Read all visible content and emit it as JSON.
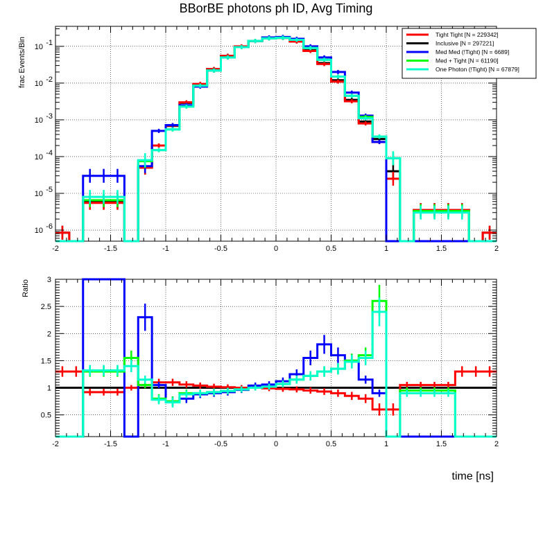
{
  "chart_data": [
    {
      "type": "histogram-step",
      "title": "BBorBE photons ph ID, Avg Timing",
      "ylabel": "frac Events/Bin",
      "xlabel": "",
      "yscale": "log",
      "xlim": [
        -2,
        2
      ],
      "ylim": [
        5e-07,
        0.35
      ],
      "grid": true,
      "legend_position": "top-right",
      "x_ticks": [
        "-2",
        "-1.5",
        "-1",
        "-0.5",
        "0",
        "0.5",
        "1",
        "1.5",
        "2"
      ],
      "y_ticks": [
        {
          "base": "10",
          "exp": "-1",
          "value": 0.1
        },
        {
          "base": "10",
          "exp": "-2",
          "value": 0.01
        },
        {
          "base": "10",
          "exp": "-3",
          "value": 0.001
        },
        {
          "base": "10",
          "exp": "-4",
          "value": 0.0001
        },
        {
          "base": "10",
          "exp": "-5",
          "value": 1e-05
        },
        {
          "base": "10",
          "exp": "-6",
          "value": 1e-06
        }
      ],
      "series": [
        {
          "name": "Inclusive [N = 297221]",
          "color": "#000000",
          "values": [
            8.5e-07,
            0,
            6e-06,
            6e-06,
            6e-06,
            0,
            5e-05,
            0.0002,
            0.00068,
            0.0029,
            0.009,
            0.024,
            0.055,
            0.098,
            0.14,
            0.165,
            0.17,
            0.14,
            0.078,
            0.035,
            0.012,
            0.0035,
            0.0009,
            0.0003,
            4e-05,
            0,
            3.5e-06,
            3.5e-06,
            3.5e-06,
            3.5e-06,
            0,
            8.5e-07
          ]
        },
        {
          "name": "Tight Tight [N = 229342]",
          "color": "#ff0000",
          "values": [
            8.5e-07,
            0,
            5.5e-06,
            5.5e-06,
            5.5e-06,
            0,
            5e-05,
            0.0002,
            0.0007,
            0.003,
            0.0095,
            0.024,
            0.055,
            0.1,
            0.14,
            0.165,
            0.17,
            0.135,
            0.075,
            0.033,
            0.011,
            0.0032,
            0.0008,
            0.00025,
            2.5e-05,
            0,
            3.5e-06,
            3.5e-06,
            3.5e-06,
            3.5e-06,
            0,
            8.5e-07
          ]
        },
        {
          "name": "Med Med (!Tight) [N = 6689]",
          "color": "#0000ff",
          "values": [
            0,
            0,
            3e-05,
            3e-05,
            3e-05,
            0,
            5.5e-05,
            0.0005,
            0.00072,
            0.0025,
            0.008,
            0.022,
            0.05,
            0.095,
            0.14,
            0.175,
            0.18,
            0.16,
            0.1,
            0.05,
            0.02,
            0.0055,
            0.0013,
            0.00025,
            0,
            0,
            0,
            0,
            0,
            0,
            0,
            0
          ]
        },
        {
          "name": "Med + Tight [N = 61190]",
          "color": "#00ff00",
          "values": [
            0,
            0,
            6.5e-06,
            6.5e-06,
            6.5e-06,
            0,
            7.5e-05,
            0.00015,
            0.00055,
            0.0023,
            0.0085,
            0.022,
            0.05,
            0.095,
            0.14,
            0.165,
            0.17,
            0.15,
            0.09,
            0.043,
            0.015,
            0.0045,
            0.0012,
            0.00035,
            9e-05,
            0,
            3.3e-06,
            3.3e-06,
            3.3e-06,
            3.3e-06,
            0,
            0
          ]
        },
        {
          "name": "One Photon (!Tight) [N = 67879]",
          "color": "#00ffcc",
          "values": [
            0,
            0,
            8e-06,
            8e-06,
            8e-06,
            0,
            8e-05,
            0.00015,
            0.00055,
            0.0023,
            0.0085,
            0.022,
            0.05,
            0.095,
            0.14,
            0.165,
            0.17,
            0.15,
            0.09,
            0.043,
            0.015,
            0.0045,
            0.0011,
            0.00035,
            9e-05,
            0,
            3e-06,
            3e-06,
            3e-06,
            3e-06,
            0,
            0
          ]
        }
      ]
    },
    {
      "type": "histogram-step",
      "title": "",
      "ylabel": "Ratio",
      "xlabel": "time [ns]",
      "yscale": "linear",
      "xlim": [
        -2,
        2
      ],
      "ylim": [
        0.1,
        3
      ],
      "grid": true,
      "x_ticks": [
        "-2",
        "-1.5",
        "-1",
        "-0.5",
        "0",
        "0.5",
        "1",
        "1.5",
        "2"
      ],
      "y_ticks": [
        "0.5",
        "1",
        "1.5",
        "2",
        "2.5",
        "3"
      ],
      "series": [
        {
          "name": "Inclusive",
          "color": "#000000",
          "values": [
            1,
            1,
            1,
            1,
            1,
            1,
            1,
            1,
            1,
            1,
            1,
            1,
            1,
            1,
            1,
            1,
            1,
            1,
            1,
            1,
            1,
            1,
            1,
            1,
            1,
            1,
            1,
            1,
            1,
            1,
            1,
            1
          ]
        },
        {
          "name": "Tight Tight",
          "color": "#ff0000",
          "values": [
            1.3,
            1.3,
            0.92,
            0.92,
            0.92,
            1.0,
            1.05,
            1.1,
            1.1,
            1.06,
            1.04,
            1.02,
            1.01,
            1.0,
            1.0,
            0.99,
            0.98,
            0.97,
            0.95,
            0.93,
            0.9,
            0.85,
            0.8,
            0.6,
            0.6,
            1.05,
            1.05,
            1.05,
            1.05,
            1.3,
            1.3,
            1.3
          ]
        },
        {
          "name": "Med Med (!Tight)",
          "color": "#0000ff",
          "values": [
            0.1,
            0.1,
            3.0,
            3.0,
            3.0,
            0.1,
            2.3,
            1.05,
            0.75,
            0.8,
            0.88,
            0.9,
            0.92,
            0.96,
            1.04,
            1.06,
            1.12,
            1.25,
            1.55,
            1.8,
            1.6,
            1.5,
            1.15,
            0.9,
            0.1,
            0.1,
            0.1,
            0.1,
            0.1,
            0.1,
            0.1,
            0.1
          ]
        },
        {
          "name": "Med + Tight",
          "color": "#00ff00",
          "values": [
            0.1,
            0.1,
            1.3,
            1.3,
            1.3,
            1.55,
            1.05,
            0.8,
            0.75,
            0.9,
            0.9,
            0.92,
            0.94,
            0.97,
            1.0,
            1.02,
            1.07,
            1.15,
            1.22,
            1.3,
            1.35,
            1.5,
            1.6,
            2.6,
            0.1,
            0.95,
            0.95,
            0.95,
            0.95,
            0.1,
            0.1,
            0.1
          ]
        },
        {
          "name": "One Photon (!Tight)",
          "color": "#00ffcc",
          "values": [
            0.1,
            0.1,
            1.32,
            1.32,
            1.32,
            1.4,
            1.15,
            0.78,
            0.73,
            0.88,
            0.9,
            0.92,
            0.94,
            0.97,
            1.0,
            1.02,
            1.07,
            1.15,
            1.22,
            1.3,
            1.35,
            1.48,
            1.55,
            2.4,
            0.1,
            0.9,
            0.9,
            0.9,
            0.9,
            0.1,
            0.1,
            0.1
          ]
        }
      ]
    }
  ]
}
